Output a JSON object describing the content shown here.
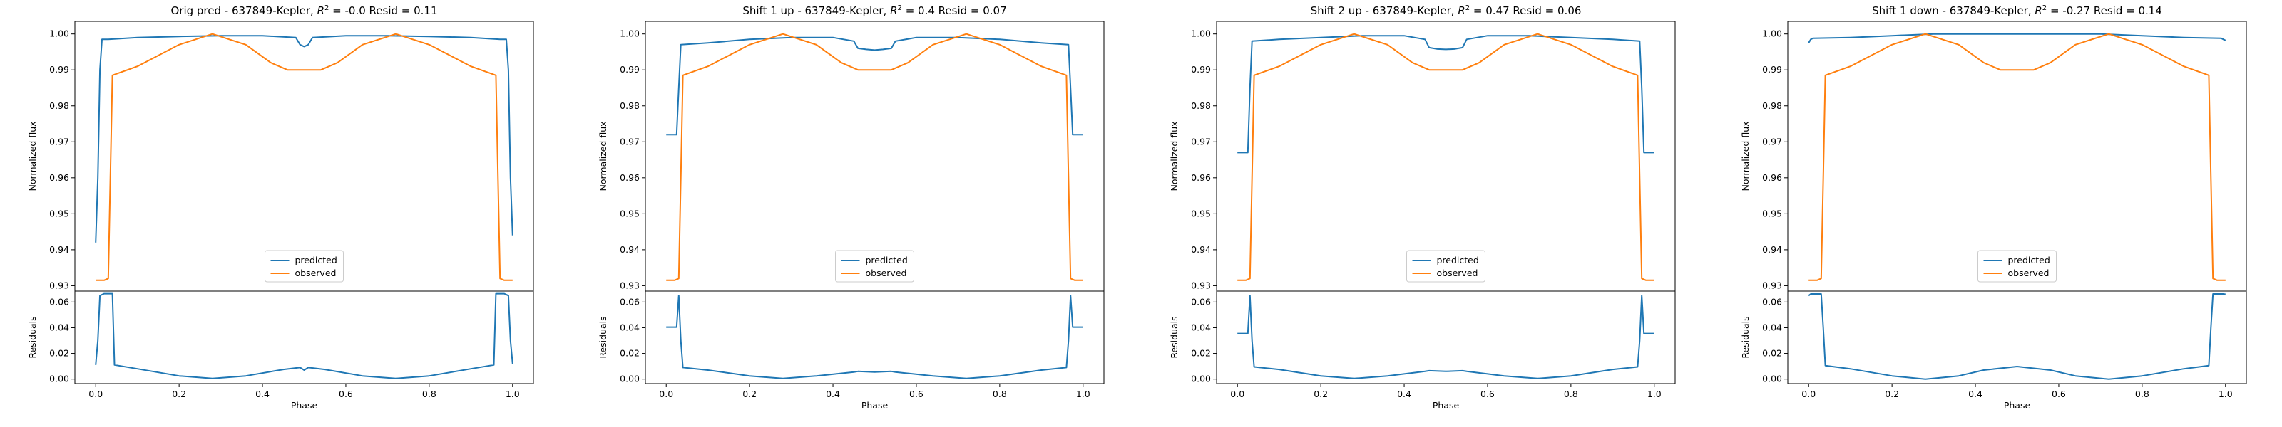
{
  "colors": {
    "predicted": "#1f77b4",
    "observed": "#ff7f0e"
  },
  "chart_data": [
    {
      "type": "line",
      "title": "Orig pred - 637849-Kepler, R² = -0.0 Resid = 0.11",
      "title_parts": [
        "Orig pred - 637849-Kepler, ",
        "R",
        "2",
        " = -0.0 Resid = 0.11"
      ],
      "xlabel": "Phase",
      "ylabel": "Normalized flux",
      "ylabel_resid": "Residuals",
      "xlim": [
        -0.05,
        1.05
      ],
      "ylim": [
        0.9285,
        1.0035
      ],
      "ylim_resid": [
        -0.0035,
        0.0685
      ],
      "xticks": [
        "0.0",
        "0.2",
        "0.4",
        "0.6",
        "0.8",
        "1.0"
      ],
      "yticks": [
        "0.93",
        "0.94",
        "0.95",
        "0.96",
        "0.97",
        "0.98",
        "0.99",
        "1.00"
      ],
      "yticks_resid": [
        "0.00",
        "0.02",
        "0.04",
        "0.06"
      ],
      "legend": [
        "predicted",
        "observed"
      ],
      "legend_loc": "lower center",
      "series": [
        {
          "name": "predicted",
          "x": [
            0.0,
            0.005,
            0.01,
            0.015,
            0.03,
            0.1,
            0.2,
            0.3,
            0.4,
            0.48,
            0.49,
            0.5,
            0.51,
            0.52,
            0.6,
            0.7,
            0.8,
            0.9,
            0.97,
            0.985,
            0.99,
            0.995,
            1.0
          ],
          "y": [
            0.942,
            0.96,
            0.99,
            0.9985,
            0.9985,
            0.999,
            0.9993,
            0.9995,
            0.9995,
            0.999,
            0.997,
            0.9965,
            0.997,
            0.999,
            0.9995,
            0.9995,
            0.9993,
            0.999,
            0.9985,
            0.9985,
            0.99,
            0.96,
            0.944
          ]
        },
        {
          "name": "observed",
          "x": [
            0.0,
            0.02,
            0.03,
            0.035,
            0.04,
            0.1,
            0.2,
            0.28,
            0.36,
            0.42,
            0.46,
            0.5,
            0.54,
            0.58,
            0.64,
            0.72,
            0.8,
            0.9,
            0.96,
            0.965,
            0.97,
            0.98,
            1.0
          ],
          "y": [
            0.9315,
            0.9315,
            0.932,
            0.96,
            0.9885,
            0.991,
            0.997,
            1.0,
            0.997,
            0.992,
            0.99,
            0.99,
            0.99,
            0.992,
            0.997,
            1.0,
            0.997,
            0.991,
            0.9885,
            0.96,
            0.932,
            0.9315,
            0.9315
          ]
        },
        {
          "name": "residual",
          "x": [
            0.0,
            0.005,
            0.01,
            0.02,
            0.03,
            0.04,
            0.045,
            0.1,
            0.2,
            0.28,
            0.36,
            0.45,
            0.49,
            0.5,
            0.51,
            0.55,
            0.64,
            0.72,
            0.8,
            0.9,
            0.955,
            0.96,
            0.97,
            0.98,
            0.99,
            0.995,
            1.0
          ],
          "y": [
            0.011,
            0.03,
            0.065,
            0.0665,
            0.0665,
            0.0665,
            0.011,
            0.008,
            0.0025,
            0.0005,
            0.0025,
            0.0075,
            0.009,
            0.007,
            0.009,
            0.0075,
            0.0025,
            0.0005,
            0.0025,
            0.008,
            0.011,
            0.0665,
            0.0665,
            0.0665,
            0.065,
            0.03,
            0.012
          ]
        }
      ]
    },
    {
      "type": "line",
      "title": "Shift 1 up - 637849-Kepler, R² = 0.4 Resid = 0.07",
      "title_parts": [
        "Shift 1 up - 637849-Kepler, ",
        "R",
        "2",
        " = 0.4 Resid = 0.07"
      ],
      "xlabel": "Phase",
      "ylabel": "Normalized flux",
      "ylabel_resid": "Residuals",
      "xlim": [
        -0.05,
        1.05
      ],
      "ylim": [
        0.9285,
        1.0035
      ],
      "ylim_resid": [
        -0.0035,
        0.0685
      ],
      "xticks": [
        "0.0",
        "0.2",
        "0.4",
        "0.6",
        "0.8",
        "1.0"
      ],
      "yticks": [
        "0.93",
        "0.94",
        "0.95",
        "0.96",
        "0.97",
        "0.98",
        "0.99",
        "1.00"
      ],
      "yticks_resid": [
        "0.00",
        "0.02",
        "0.04",
        "0.06"
      ],
      "legend": [
        "predicted",
        "observed"
      ],
      "legend_loc": "lower center",
      "series": [
        {
          "name": "predicted",
          "x": [
            0.0,
            0.025,
            0.03,
            0.035,
            0.1,
            0.2,
            0.3,
            0.4,
            0.45,
            0.46,
            0.48,
            0.5,
            0.52,
            0.54,
            0.55,
            0.6,
            0.7,
            0.8,
            0.9,
            0.965,
            0.97,
            0.975,
            1.0
          ],
          "y": [
            0.972,
            0.972,
            0.985,
            0.997,
            0.9975,
            0.9985,
            0.999,
            0.999,
            0.998,
            0.996,
            0.9957,
            0.9955,
            0.9957,
            0.996,
            0.998,
            0.999,
            0.999,
            0.9985,
            0.9975,
            0.997,
            0.985,
            0.972,
            0.972
          ]
        },
        {
          "name": "observed",
          "x": [
            0.0,
            0.02,
            0.03,
            0.035,
            0.04,
            0.1,
            0.2,
            0.28,
            0.36,
            0.42,
            0.46,
            0.5,
            0.54,
            0.58,
            0.64,
            0.72,
            0.8,
            0.9,
            0.96,
            0.965,
            0.97,
            0.98,
            1.0
          ],
          "y": [
            0.9315,
            0.9315,
            0.932,
            0.96,
            0.9885,
            0.991,
            0.997,
            1.0,
            0.997,
            0.992,
            0.99,
            0.99,
            0.99,
            0.992,
            0.997,
            1.0,
            0.997,
            0.991,
            0.9885,
            0.96,
            0.932,
            0.9315,
            0.9315
          ]
        },
        {
          "name": "residual",
          "x": [
            0.0,
            0.025,
            0.03,
            0.035,
            0.04,
            0.1,
            0.2,
            0.28,
            0.36,
            0.45,
            0.46,
            0.5,
            0.54,
            0.55,
            0.64,
            0.72,
            0.8,
            0.9,
            0.96,
            0.965,
            0.97,
            0.975,
            1.0
          ],
          "y": [
            0.0405,
            0.0405,
            0.065,
            0.03,
            0.009,
            0.007,
            0.0025,
            0.0005,
            0.0025,
            0.0055,
            0.006,
            0.0055,
            0.006,
            0.0055,
            0.0025,
            0.0005,
            0.0025,
            0.007,
            0.009,
            0.03,
            0.065,
            0.0405,
            0.0405
          ]
        }
      ]
    },
    {
      "type": "line",
      "title": "Shift 2 up - 637849-Kepler, R² = 0.47 Resid = 0.06",
      "title_parts": [
        "Shift 2 up - 637849-Kepler, ",
        "R",
        "2",
        " = 0.47 Resid = 0.06"
      ],
      "xlabel": "Phase",
      "ylabel": "Normalized flux",
      "ylabel_resid": "Residuals",
      "xlim": [
        -0.05,
        1.05
      ],
      "ylim": [
        0.9285,
        1.0035
      ],
      "ylim_resid": [
        -0.0035,
        0.0685
      ],
      "xticks": [
        "0.0",
        "0.2",
        "0.4",
        "0.6",
        "0.8",
        "1.0"
      ],
      "yticks": [
        "0.93",
        "0.94",
        "0.95",
        "0.96",
        "0.97",
        "0.98",
        "0.99",
        "1.00"
      ],
      "yticks_resid": [
        "0.00",
        "0.02",
        "0.04",
        "0.06"
      ],
      "legend": [
        "predicted",
        "observed"
      ],
      "legend_loc": "lower center",
      "series": [
        {
          "name": "predicted",
          "x": [
            0.0,
            0.025,
            0.03,
            0.035,
            0.1,
            0.2,
            0.3,
            0.4,
            0.45,
            0.46,
            0.48,
            0.5,
            0.52,
            0.54,
            0.55,
            0.6,
            0.7,
            0.8,
            0.9,
            0.965,
            0.97,
            0.975,
            1.0
          ],
          "y": [
            0.967,
            0.967,
            0.985,
            0.998,
            0.9985,
            0.999,
            0.9995,
            0.9995,
            0.9985,
            0.9962,
            0.9958,
            0.9957,
            0.9958,
            0.9962,
            0.9985,
            0.9995,
            0.9995,
            0.999,
            0.9985,
            0.998,
            0.985,
            0.967,
            0.967
          ]
        },
        {
          "name": "observed",
          "x": [
            0.0,
            0.02,
            0.03,
            0.035,
            0.04,
            0.1,
            0.2,
            0.28,
            0.36,
            0.42,
            0.46,
            0.5,
            0.54,
            0.58,
            0.64,
            0.72,
            0.8,
            0.9,
            0.96,
            0.965,
            0.97,
            0.98,
            1.0
          ],
          "y": [
            0.9315,
            0.9315,
            0.932,
            0.96,
            0.9885,
            0.991,
            0.997,
            1.0,
            0.997,
            0.992,
            0.99,
            0.99,
            0.99,
            0.992,
            0.997,
            1.0,
            0.997,
            0.991,
            0.9885,
            0.96,
            0.932,
            0.9315,
            0.9315
          ]
        },
        {
          "name": "residual",
          "x": [
            0.0,
            0.025,
            0.03,
            0.035,
            0.04,
            0.1,
            0.2,
            0.28,
            0.36,
            0.45,
            0.46,
            0.5,
            0.54,
            0.55,
            0.64,
            0.72,
            0.8,
            0.9,
            0.96,
            0.965,
            0.97,
            0.975,
            1.0
          ],
          "y": [
            0.0355,
            0.0355,
            0.065,
            0.03,
            0.0095,
            0.0075,
            0.0025,
            0.0005,
            0.0025,
            0.006,
            0.0065,
            0.006,
            0.0065,
            0.006,
            0.0025,
            0.0005,
            0.0025,
            0.0075,
            0.0095,
            0.03,
            0.065,
            0.0355,
            0.0355
          ]
        }
      ]
    },
    {
      "type": "line",
      "title": "Shift 1 down - 637849-Kepler, R² = -0.27 Resid = 0.14",
      "title_parts": [
        "Shift 1 down - 637849-Kepler, ",
        "R",
        "2",
        " = -0.27 Resid = 0.14"
      ],
      "xlabel": "Phase",
      "ylabel": "Normalized flux",
      "ylabel_resid": "Residuals",
      "xlim": [
        -0.05,
        1.05
      ],
      "ylim": [
        0.9285,
        1.0035
      ],
      "ylim_resid": [
        -0.0035,
        0.0685
      ],
      "xticks": [
        "0.0",
        "0.2",
        "0.4",
        "0.6",
        "0.8",
        "1.0"
      ],
      "yticks": [
        "0.93",
        "0.94",
        "0.95",
        "0.96",
        "0.97",
        "0.98",
        "0.99",
        "1.00"
      ],
      "yticks_resid": [
        "0.00",
        "0.02",
        "0.04",
        "0.06"
      ],
      "legend": [
        "predicted",
        "observed"
      ],
      "legend_loc": "lower center",
      "series": [
        {
          "name": "predicted",
          "x": [
            0.0,
            0.005,
            0.01,
            0.1,
            0.2,
            0.3,
            0.4,
            0.5,
            0.6,
            0.7,
            0.8,
            0.9,
            0.99,
            0.995,
            1.0
          ],
          "y": [
            0.9975,
            0.9985,
            0.9988,
            0.999,
            0.9995,
            1.0,
            1.0,
            1.0,
            1.0,
            1.0,
            0.9995,
            0.999,
            0.9988,
            0.9985,
            0.9982
          ]
        },
        {
          "name": "observed",
          "x": [
            0.0,
            0.02,
            0.03,
            0.035,
            0.04,
            0.1,
            0.2,
            0.28,
            0.36,
            0.42,
            0.46,
            0.5,
            0.54,
            0.58,
            0.64,
            0.72,
            0.8,
            0.9,
            0.96,
            0.965,
            0.97,
            0.98,
            1.0
          ],
          "y": [
            0.9315,
            0.9315,
            0.932,
            0.96,
            0.9885,
            0.991,
            0.997,
            1.0,
            0.997,
            0.992,
            0.99,
            0.99,
            0.99,
            0.992,
            0.997,
            1.0,
            0.997,
            0.991,
            0.9885,
            0.96,
            0.932,
            0.9315,
            0.9315
          ]
        },
        {
          "name": "residual",
          "x": [
            0.0,
            0.005,
            0.03,
            0.035,
            0.04,
            0.1,
            0.2,
            0.28,
            0.36,
            0.42,
            0.5,
            0.58,
            0.64,
            0.72,
            0.8,
            0.9,
            0.96,
            0.965,
            0.97,
            0.995,
            1.0
          ],
          "y": [
            0.065,
            0.0663,
            0.0663,
            0.04,
            0.0105,
            0.008,
            0.0025,
            0.0,
            0.0025,
            0.007,
            0.0098,
            0.007,
            0.0025,
            0.0,
            0.0025,
            0.008,
            0.0105,
            0.04,
            0.0663,
            0.0663,
            0.066
          ]
        }
      ]
    }
  ]
}
